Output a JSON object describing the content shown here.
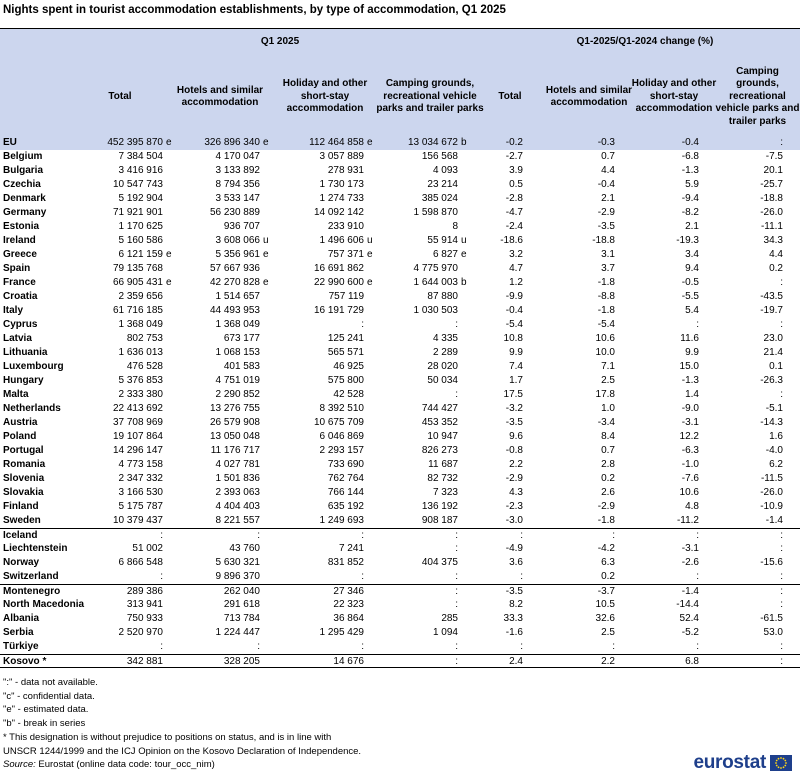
{
  "title": "Nights spent in tourist accommodation establishments, by type of accommodation, Q1 2025",
  "header": {
    "group1": "Q1 2025",
    "group2": "Q1-2025/Q1-2024 change  (%)",
    "columns": [
      "Total",
      "Hotels and similar accommodation",
      "Holiday and other short-stay accommodation",
      "Camping grounds, recreational vehicle parks and trailer parks",
      "Total",
      "Hotels and similar accommodation",
      "Holiday and other short-stay accommodation",
      "Camping grounds, recreational vehicle parks and trailer parks"
    ]
  },
  "rows": [
    {
      "name": "EU",
      "c": [
        "452 395 870",
        "326 896 340",
        "112 464 858",
        "13 034 672",
        "-0.2",
        "-0.3",
        "-0.4",
        ":"
      ],
      "f": [
        "e",
        "e",
        "e",
        "b",
        "",
        "",
        "",
        ""
      ],
      "eu": true
    },
    {
      "name": "Belgium",
      "c": [
        "7 384 504",
        "4 170 047",
        "3 057 889",
        "156 568",
        "-2.7",
        "0.7",
        "-6.8",
        "-7.5"
      ],
      "f": [
        "",
        "",
        "",
        "",
        "",
        "",
        "",
        ""
      ]
    },
    {
      "name": "Bulgaria",
      "c": [
        "3 416 916",
        "3 133 892",
        "278 931",
        "4 093",
        "3.9",
        "4.4",
        "-1.3",
        "20.1"
      ],
      "f": [
        "",
        "",
        "",
        "",
        "",
        "",
        "",
        ""
      ]
    },
    {
      "name": "Czechia",
      "c": [
        "10 547 743",
        "8 794 356",
        "1 730 173",
        "23 214",
        "0.5",
        "-0.4",
        "5.9",
        "-25.7"
      ],
      "f": [
        "",
        "",
        "",
        "",
        "",
        "",
        "",
        ""
      ]
    },
    {
      "name": "Denmark",
      "c": [
        "5 192 904",
        "3 533 147",
        "1 274 733",
        "385 024",
        "-2.8",
        "2.1",
        "-9.4",
        "-18.8"
      ],
      "f": [
        "",
        "",
        "",
        "",
        "",
        "",
        "",
        ""
      ]
    },
    {
      "name": "Germany",
      "c": [
        "71 921 901",
        "56 230 889",
        "14 092 142",
        "1 598 870",
        "-4.7",
        "-2.9",
        "-8.2",
        "-26.0"
      ],
      "f": [
        "",
        "",
        "",
        "",
        "",
        "",
        "",
        ""
      ]
    },
    {
      "name": "Estonia",
      "c": [
        "1 170 625",
        "936 707",
        "233 910",
        "8",
        "-2.4",
        "-3.5",
        "2.1",
        "-11.1"
      ],
      "f": [
        "",
        "",
        "",
        "",
        "",
        "",
        "",
        ""
      ]
    },
    {
      "name": "Ireland",
      "c": [
        "5 160 586",
        "3 608 066",
        "1 496 606",
        "55 914",
        "-18.6",
        "-18.8",
        "-19.3",
        "34.3"
      ],
      "f": [
        "",
        "u",
        "u",
        "u",
        "",
        "",
        "",
        ""
      ]
    },
    {
      "name": "Greece",
      "c": [
        "6 121 159",
        "5 356 961",
        "757 371",
        "6 827",
        "3.2",
        "3.1",
        "3.4",
        "4.4"
      ],
      "f": [
        "e",
        "e",
        "e",
        "e",
        "",
        "",
        "",
        ""
      ]
    },
    {
      "name": "Spain",
      "c": [
        "79 135 768",
        "57 667 936",
        "16 691 862",
        "4 775 970",
        "4.7",
        "3.7",
        "9.4",
        "0.2"
      ],
      "f": [
        "",
        "",
        "",
        "",
        "",
        "",
        "",
        ""
      ]
    },
    {
      "name": "France",
      "c": [
        "66 905 431",
        "42 270 828",
        "22 990 600",
        "1 644 003",
        "1.2",
        "-1.8",
        "-0.5",
        ":"
      ],
      "f": [
        "e",
        "e",
        "e",
        "b",
        "",
        "",
        "",
        ""
      ]
    },
    {
      "name": "Croatia",
      "c": [
        "2 359 656",
        "1 514 657",
        "757 119",
        "87 880",
        "-9.9",
        "-8.8",
        "-5.5",
        "-43.5"
      ],
      "f": [
        "",
        "",
        "",
        "",
        "",
        "",
        "",
        ""
      ]
    },
    {
      "name": "Italy",
      "c": [
        "61 716 185",
        "44 493 953",
        "16 191 729",
        "1 030 503",
        "-0.4",
        "-1.8",
        "5.4",
        "-19.7"
      ],
      "f": [
        "",
        "",
        "",
        "",
        "",
        "",
        "",
        ""
      ]
    },
    {
      "name": "Cyprus",
      "c": [
        "1 368 049",
        "1 368 049",
        ":",
        ":",
        "-5.4",
        "-5.4",
        ":",
        ":"
      ],
      "f": [
        "",
        "",
        "",
        "",
        "",
        "",
        "",
        ""
      ]
    },
    {
      "name": "Latvia",
      "c": [
        "802 753",
        "673 177",
        "125 241",
        "4 335",
        "10.8",
        "10.6",
        "11.6",
        "23.0"
      ],
      "f": [
        "",
        "",
        "",
        "",
        "",
        "",
        "",
        ""
      ]
    },
    {
      "name": "Lithuania",
      "c": [
        "1 636 013",
        "1 068 153",
        "565 571",
        "2 289",
        "9.9",
        "10.0",
        "9.9",
        "21.4"
      ],
      "f": [
        "",
        "",
        "",
        "",
        "",
        "",
        "",
        ""
      ]
    },
    {
      "name": "Luxembourg",
      "c": [
        "476 528",
        "401 583",
        "46 925",
        "28 020",
        "7.4",
        "7.1",
        "15.0",
        "0.1"
      ],
      "f": [
        "",
        "",
        "",
        "",
        "",
        "",
        "",
        ""
      ]
    },
    {
      "name": "Hungary",
      "c": [
        "5 376 853",
        "4 751 019",
        "575 800",
        "50 034",
        "1.7",
        "2.5",
        "-1.3",
        "-26.3"
      ],
      "f": [
        "",
        "",
        "",
        "",
        "",
        "",
        "",
        ""
      ]
    },
    {
      "name": "Malta",
      "c": [
        "2 333 380",
        "2 290 852",
        "42 528",
        ":",
        "17.5",
        "17.8",
        "1.4",
        ":"
      ],
      "f": [
        "",
        "",
        "",
        "",
        "",
        "",
        "",
        ""
      ]
    },
    {
      "name": "Netherlands",
      "c": [
        "22 413 692",
        "13 276 755",
        "8 392 510",
        "744 427",
        "-3.2",
        "1.0",
        "-9.0",
        "-5.1"
      ],
      "f": [
        "",
        "",
        "",
        "",
        "",
        "",
        "",
        ""
      ]
    },
    {
      "name": "Austria",
      "c": [
        "37 708 969",
        "26 579 908",
        "10 675 709",
        "453 352",
        "-3.5",
        "-3.4",
        "-3.1",
        "-14.3"
      ],
      "f": [
        "",
        "",
        "",
        "",
        "",
        "",
        "",
        ""
      ]
    },
    {
      "name": "Poland",
      "c": [
        "19 107 864",
        "13 050 048",
        "6 046 869",
        "10 947",
        "9.6",
        "8.4",
        "12.2",
        "1.6"
      ],
      "f": [
        "",
        "",
        "",
        "",
        "",
        "",
        "",
        ""
      ]
    },
    {
      "name": "Portugal",
      "c": [
        "14 296 147",
        "11 176 717",
        "2 293 157",
        "826 273",
        "-0.8",
        "0.7",
        "-6.3",
        "-4.0"
      ],
      "f": [
        "",
        "",
        "",
        "",
        "",
        "",
        "",
        ""
      ]
    },
    {
      "name": "Romania",
      "c": [
        "4 773 158",
        "4 027 781",
        "733 690",
        "11 687",
        "2.2",
        "2.8",
        "-1.0",
        "6.2"
      ],
      "f": [
        "",
        "",
        "",
        "",
        "",
        "",
        "",
        ""
      ]
    },
    {
      "name": "Slovenia",
      "c": [
        "2 347 332",
        "1 501 836",
        "762 764",
        "82 732",
        "-2.9",
        "0.2",
        "-7.6",
        "-11.5"
      ],
      "f": [
        "",
        "",
        "",
        "",
        "",
        "",
        "",
        ""
      ]
    },
    {
      "name": "Slovakia",
      "c": [
        "3 166 530",
        "2 393 063",
        "766 144",
        "7 323",
        "4.3",
        "2.6",
        "10.6",
        "-26.0"
      ],
      "f": [
        "",
        "",
        "",
        "",
        "",
        "",
        "",
        ""
      ]
    },
    {
      "name": "Finland",
      "c": [
        "5 175 787",
        "4 404 403",
        "635 192",
        "136 192",
        "-2.3",
        "-2.9",
        "4.8",
        "-10.9"
      ],
      "f": [
        "",
        "",
        "",
        "",
        "",
        "",
        "",
        ""
      ]
    },
    {
      "name": "Sweden",
      "c": [
        "10 379 437",
        "8 221 557",
        "1 249 693",
        "908 187",
        "-3.0",
        "-1.8",
        "-11.2",
        "-1.4"
      ],
      "f": [
        "",
        "",
        "",
        "",
        "",
        "",
        "",
        ""
      ]
    },
    {
      "name": "Iceland",
      "c": [
        ":",
        ":",
        ":",
        ":",
        ":",
        ":",
        ":",
        ":"
      ],
      "f": [
        "",
        "",
        "",
        "",
        "",
        "",
        "",
        ""
      ],
      "sep": true
    },
    {
      "name": "Liechtenstein",
      "c": [
        "51 002",
        "43 760",
        "7 241",
        ":",
        "-4.9",
        "-4.2",
        "-3.1",
        ":"
      ],
      "f": [
        "",
        "",
        "",
        "",
        "",
        "",
        "",
        ""
      ]
    },
    {
      "name": "Norway",
      "c": [
        "6 866 548",
        "5 630 321",
        "831 852",
        "404 375",
        "3.6",
        "6.3",
        "-2.6",
        "-15.6"
      ],
      "f": [
        "",
        "",
        "",
        "",
        "",
        "",
        "",
        ""
      ]
    },
    {
      "name": "Switzerland",
      "c": [
        ":",
        "9 896 370",
        ":",
        ":",
        ":",
        "0.2",
        ":",
        ":"
      ],
      "f": [
        "",
        "",
        "",
        "",
        "",
        "",
        "",
        ""
      ]
    },
    {
      "name": "Montenegro",
      "c": [
        "289 386",
        "262 040",
        "27 346",
        ":",
        "-3.5",
        "-3.7",
        "-1.4",
        ":"
      ],
      "f": [
        "",
        "",
        "",
        "",
        "",
        "",
        "",
        ""
      ],
      "sep": true
    },
    {
      "name": "North Macedonia",
      "c": [
        "313 941",
        "291 618",
        "22 323",
        ":",
        "8.2",
        "10.5",
        "-14.4",
        ":"
      ],
      "f": [
        "",
        "",
        "",
        "",
        "",
        "",
        "",
        ""
      ]
    },
    {
      "name": "Albania",
      "c": [
        "750 933",
        "713 784",
        "36 864",
        "285",
        "33.3",
        "32.6",
        "52.4",
        "-61.5"
      ],
      "f": [
        "",
        "",
        "",
        "",
        "",
        "",
        "",
        ""
      ]
    },
    {
      "name": "Serbia",
      "c": [
        "2 520 970",
        "1 224 447",
        "1 295 429",
        "1 094",
        "-1.6",
        "2.5",
        "-5.2",
        "53.0"
      ],
      "f": [
        "",
        "",
        "",
        "",
        "",
        "",
        "",
        ""
      ]
    },
    {
      "name": "Türkiye",
      "c": [
        ":",
        ":",
        ":",
        ":",
        ":",
        ":",
        ":",
        ":"
      ],
      "f": [
        "",
        "",
        "",
        "",
        "",
        "",
        "",
        ""
      ]
    },
    {
      "name": "Kosovo *",
      "c": [
        "342 881",
        "328 205",
        "14 676",
        ":",
        "2.4",
        "2.2",
        "6.8",
        ":"
      ],
      "f": [
        "",
        "",
        "",
        "",
        "",
        "",
        "",
        ""
      ],
      "sep": true,
      "sepbot": true
    }
  ],
  "notes": [
    "\":\" - data not available.",
    "\"c\" - confidential data.",
    "\"e\" - estimated data.",
    "\"b\" - break in series",
    "* This designation is without prejudice to positions on status, and is in line with",
    "UNSCR 1244/1999 and the ICJ Opinion on the Kosovo Declaration of Independence."
  ],
  "source_label": "Source:",
  "source_text": " Eurostat (online data code: tour_occ_nim)",
  "logo_text": "eurostat",
  "colors": {
    "header_bg": "#ccd6ee",
    "logo": "#1e3f8b"
  }
}
